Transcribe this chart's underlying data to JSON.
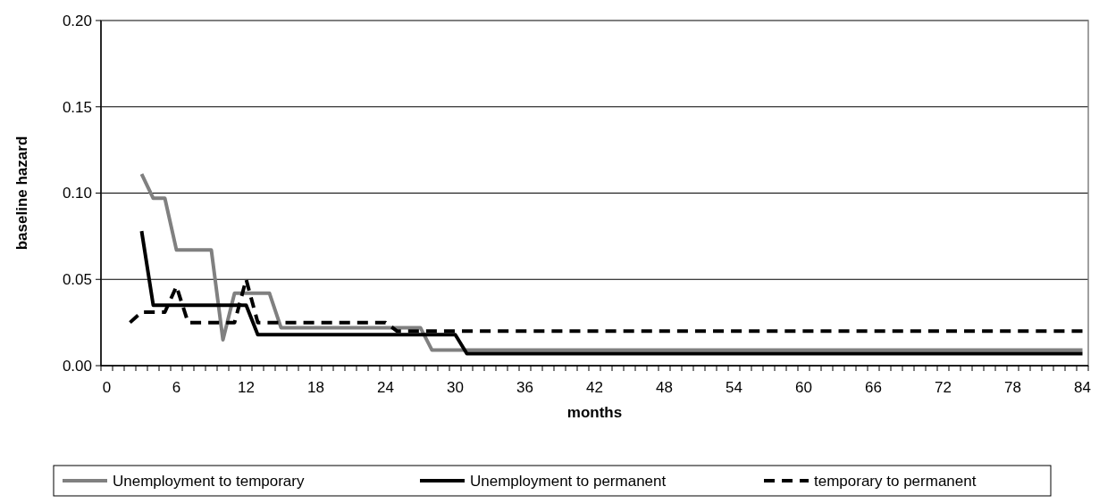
{
  "chart_data": {
    "type": "line",
    "xlabel": "months",
    "ylabel": "baseline hazard",
    "categories": [
      "0",
      null,
      null,
      null,
      null,
      null,
      "6",
      null,
      null,
      null,
      null,
      null,
      "12",
      null,
      null,
      null,
      null,
      null,
      "18",
      null,
      null,
      null,
      null,
      null,
      "24",
      null,
      null,
      null,
      null,
      null,
      "30",
      null,
      null,
      null,
      null,
      null,
      "36",
      null,
      null,
      null,
      null,
      null,
      "42",
      null,
      null,
      null,
      null,
      null,
      "48",
      null,
      null,
      null,
      null,
      null,
      "54",
      null,
      null,
      null,
      null,
      null,
      "60",
      null,
      null,
      null,
      null,
      null,
      "66",
      null,
      null,
      null,
      null,
      null,
      "72",
      null,
      null,
      null,
      null,
      null,
      "78",
      null,
      null,
      null,
      null,
      null,
      "84"
    ],
    "ylim": [
      0,
      0.2
    ],
    "yticks": [
      {
        "value": 0,
        "label": "0.00"
      },
      {
        "value": 0.05,
        "label": "0.05"
      },
      {
        "value": 0.1,
        "label": "0.10"
      },
      {
        "value": 0.15,
        "label": "0.15"
      },
      {
        "value": 0.2,
        "label": "0.20"
      }
    ],
    "grid": "y",
    "legend": "bottom",
    "marker": "none",
    "series": [
      {
        "name": "Unemployment to temporary",
        "color": "#808080",
        "line_style": "solid",
        "values": [
          null,
          null,
          null,
          0.111,
          0.097,
          0.097,
          0.067,
          0.067,
          0.067,
          0.067,
          0.015,
          0.042,
          0.042,
          0.042,
          0.042,
          0.022,
          0.022,
          0.022,
          0.022,
          0.022,
          0.022,
          0.022,
          0.022,
          0.022,
          0.022,
          0.022,
          0.022,
          0.022,
          0.009,
          0.009,
          0.009,
          0.009,
          0.009,
          0.009,
          0.009,
          0.009,
          0.009,
          0.009,
          0.009,
          0.009,
          0.009,
          0.009,
          0.009,
          0.009,
          0.009,
          0.009,
          0.009,
          0.009,
          0.009,
          0.009,
          0.009,
          0.009,
          0.009,
          0.009,
          0.009,
          0.009,
          0.009,
          0.009,
          0.009,
          0.009,
          0.009,
          0.009,
          0.009,
          0.009,
          0.009,
          0.009,
          0.009,
          0.009,
          0.009,
          0.009,
          0.009,
          0.009,
          0.009,
          0.009,
          0.009,
          0.009,
          0.009,
          0.009,
          0.009,
          0.009,
          0.009,
          0.009,
          0.009,
          0.009,
          0.009
        ]
      },
      {
        "name": "Unemployment to permanent",
        "color": "#000000",
        "line_style": "solid",
        "values": [
          null,
          null,
          null,
          0.078,
          0.035,
          0.035,
          0.035,
          0.035,
          0.035,
          0.035,
          0.035,
          0.035,
          0.035,
          0.018,
          0.018,
          0.018,
          0.018,
          0.018,
          0.018,
          0.018,
          0.018,
          0.018,
          0.018,
          0.018,
          0.018,
          0.018,
          0.018,
          0.018,
          0.018,
          0.018,
          0.018,
          0.007,
          0.007,
          0.007,
          0.007,
          0.007,
          0.007,
          0.007,
          0.007,
          0.007,
          0.007,
          0.007,
          0.007,
          0.007,
          0.007,
          0.007,
          0.007,
          0.007,
          0.007,
          0.007,
          0.007,
          0.007,
          0.007,
          0.007,
          0.007,
          0.007,
          0.007,
          0.007,
          0.007,
          0.007,
          0.007,
          0.007,
          0.007,
          0.007,
          0.007,
          0.007,
          0.007,
          0.007,
          0.007,
          0.007,
          0.007,
          0.007,
          0.007,
          0.007,
          0.007,
          0.007,
          0.007,
          0.007,
          0.007,
          0.007,
          0.007,
          0.007,
          0.007,
          0.007,
          0.007
        ]
      },
      {
        "name": "temporary to permanent",
        "color": "#000000",
        "line_style": "dashed",
        "values": [
          null,
          null,
          0.025,
          0.031,
          0.031,
          0.031,
          0.046,
          0.025,
          0.025,
          0.025,
          0.025,
          0.025,
          0.05,
          0.025,
          0.025,
          0.025,
          0.025,
          0.025,
          0.025,
          0.025,
          0.025,
          0.025,
          0.025,
          0.025,
          0.025,
          0.02,
          0.02,
          0.02,
          0.02,
          0.02,
          0.02,
          0.02,
          0.02,
          0.02,
          0.02,
          0.02,
          0.02,
          0.02,
          0.02,
          0.02,
          0.02,
          0.02,
          0.02,
          0.02,
          0.02,
          0.02,
          0.02,
          0.02,
          0.02,
          0.02,
          0.02,
          0.02,
          0.02,
          0.02,
          0.02,
          0.02,
          0.02,
          0.02,
          0.02,
          0.02,
          0.02,
          0.02,
          0.02,
          0.02,
          0.02,
          0.02,
          0.02,
          0.02,
          0.02,
          0.02,
          0.02,
          0.02,
          0.02,
          0.02,
          0.02,
          0.02,
          0.02,
          0.02,
          0.02,
          0.02,
          0.02,
          0.02,
          0.02,
          0.02,
          0.02
        ]
      }
    ]
  }
}
